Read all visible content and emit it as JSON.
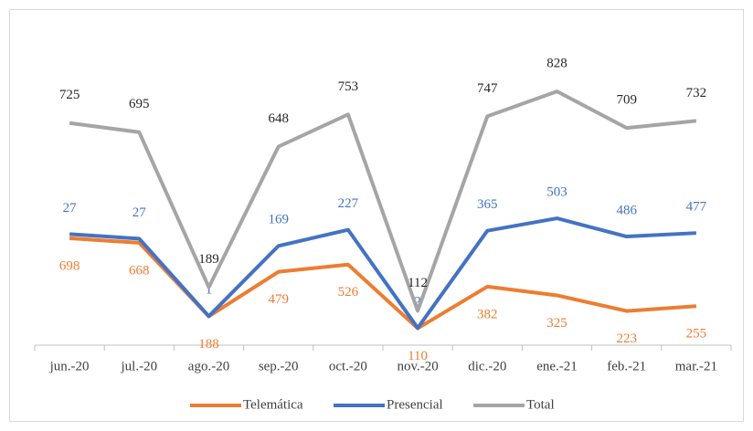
{
  "chart_data": {
    "type": "line",
    "stacked": true,
    "categories": [
      "jun.-20",
      "jul.-20",
      "ago.-20",
      "sep.-20",
      "oct.-20",
      "nov.-20",
      "dic.-20",
      "ene.-21",
      "feb.-21",
      "mar.-21"
    ],
    "series": [
      {
        "name": "Telemática",
        "color": "#ed7d31",
        "values": [
          698,
          668,
          188,
          479,
          526,
          110,
          382,
          325,
          223,
          255
        ]
      },
      {
        "name": "Presencial",
        "color": "#4472c4",
        "values": [
          27,
          27,
          1,
          169,
          227,
          2,
          365,
          503,
          486,
          477
        ]
      },
      {
        "name": "Total",
        "color": "#a5a5a5",
        "values": [
          725,
          695,
          189,
          648,
          753,
          112,
          747,
          828,
          709,
          732
        ]
      }
    ],
    "ylim": [
      0,
      1800
    ],
    "legend": "bottom"
  }
}
